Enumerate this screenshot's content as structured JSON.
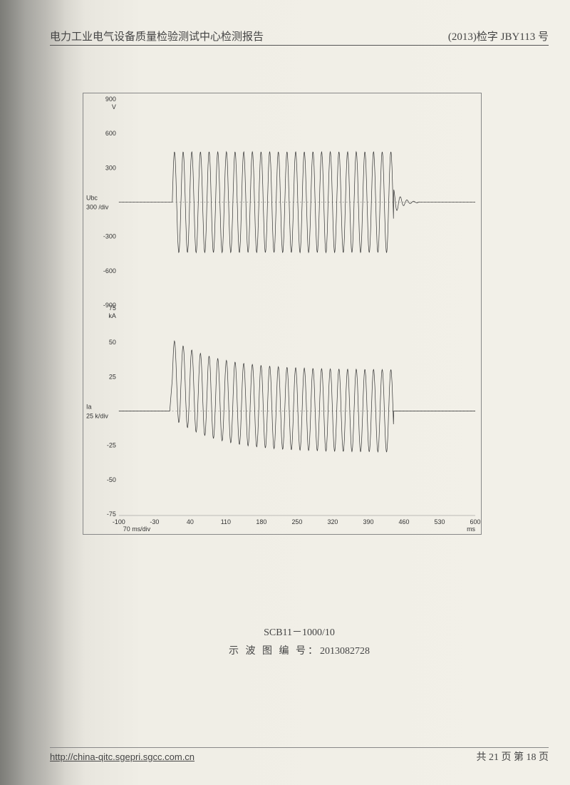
{
  "header": {
    "left": "电力工业电气设备质量检验测试中心检测报告",
    "right": "(2013)检字 JBY113 号"
  },
  "chart": {
    "background": "#f2f0e8",
    "border_color": "#888",
    "grid_color": "#bbb",
    "wave_color": "#333",
    "text_color": "#333",
    "tick_fontsize": 9,
    "x_axis": {
      "min": -100,
      "max": 600,
      "step": 70,
      "unit": "ms",
      "scale_label": "70 ms/div",
      "ticks": [
        -100,
        -30,
        40,
        110,
        180,
        250,
        320,
        390,
        460,
        530,
        600
      ]
    },
    "panels": [
      {
        "name": "voltage",
        "channel_label": "Ubc",
        "scale_label": "300 /div",
        "y_unit": "V",
        "ymin": -900,
        "ymax": 900,
        "ystep": 300,
        "yticks": [
          -900,
          -600,
          -300,
          300,
          600,
          900
        ],
        "baseline": 0,
        "series": {
          "type": "sine_burst",
          "start_ms": 5,
          "end_ms": 440,
          "amplitude": 440,
          "period_ms": 17,
          "envelope": "flat",
          "tail_decay": true,
          "tail_end_ms": 490
        }
      },
      {
        "name": "current",
        "channel_label": "Ia",
        "scale_label": "25 k/div",
        "y_unit": "kA",
        "ymin": -75,
        "ymax": 75,
        "ystep": 25,
        "yticks": [
          -75,
          -50,
          -25,
          25,
          50,
          75
        ],
        "baseline": 0,
        "series": {
          "type": "sine_burst",
          "start_ms": 5,
          "end_ms": 440,
          "amplitude": 30,
          "period_ms": 17,
          "envelope": "decay_offset",
          "initial_peak": 52,
          "initial_trough": -5,
          "settle_tau_ms": 90
        }
      }
    ]
  },
  "caption": {
    "line1": "SCB11－1000/10",
    "line2_label": "示 波 图 编 号：",
    "line2_value": "2013082728"
  },
  "footer": {
    "url": "http://china-qitc.sgepri.sgcc.com.cn",
    "page_text": "共 21 页 第 18 页"
  }
}
